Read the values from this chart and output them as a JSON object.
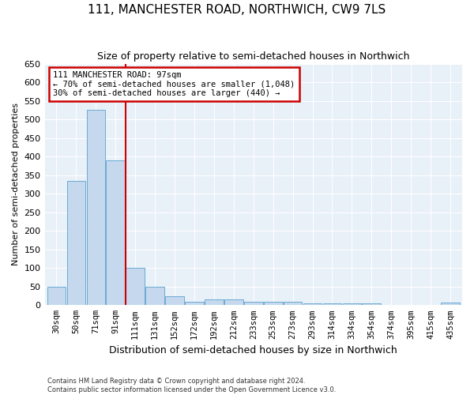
{
  "title": "111, MANCHESTER ROAD, NORTHWICH, CW9 7LS",
  "subtitle": "Size of property relative to semi-detached houses in Northwich",
  "xlabel": "Distribution of semi-detached houses by size in Northwich",
  "ylabel": "Number of semi-detached properties",
  "categories": [
    "30sqm",
    "50sqm",
    "71sqm",
    "91sqm",
    "111sqm",
    "131sqm",
    "152sqm",
    "172sqm",
    "192sqm",
    "212sqm",
    "233sqm",
    "253sqm",
    "273sqm",
    "293sqm",
    "314sqm",
    "334sqm",
    "354sqm",
    "374sqm",
    "395sqm",
    "415sqm",
    "435sqm"
  ],
  "values": [
    50,
    335,
    525,
    390,
    100,
    50,
    25,
    10,
    15,
    15,
    10,
    10,
    10,
    5,
    5,
    5,
    5,
    0,
    0,
    0,
    8
  ],
  "bar_color": "#c5d8ee",
  "bar_edgecolor": "#6aaad4",
  "background_color": "#e8f0f8",
  "grid_color": "#ffffff",
  "vline_color": "#cc0000",
  "ylim": [
    0,
    650
  ],
  "yticks": [
    0,
    50,
    100,
    150,
    200,
    250,
    300,
    350,
    400,
    450,
    500,
    550,
    600,
    650
  ],
  "annotation_title": "111 MANCHESTER ROAD: 97sqm",
  "annotation_line1": "← 70% of semi-detached houses are smaller (1,048)",
  "annotation_line2": "30% of semi-detached houses are larger (440) →",
  "annotation_box_color": "#cc0000",
  "footer_line1": "Contains HM Land Registry data © Crown copyright and database right 2024.",
  "footer_line2": "Contains public sector information licensed under the Open Government Licence v3.0."
}
